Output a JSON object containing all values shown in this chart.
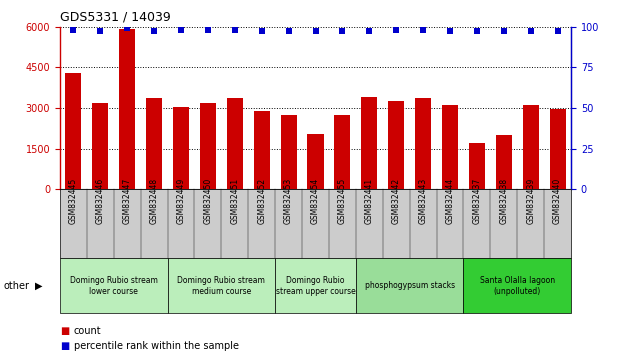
{
  "title": "GDS5331 / 14039",
  "categories": [
    "GSM832445",
    "GSM832446",
    "GSM832447",
    "GSM832448",
    "GSM832449",
    "GSM832450",
    "GSM832451",
    "GSM832452",
    "GSM832453",
    "GSM832454",
    "GSM832455",
    "GSM832441",
    "GSM832442",
    "GSM832443",
    "GSM832444",
    "GSM832437",
    "GSM832438",
    "GSM832439",
    "GSM832440"
  ],
  "counts": [
    4300,
    3200,
    5900,
    3350,
    3050,
    3200,
    3350,
    2900,
    2750,
    2050,
    2750,
    3400,
    3250,
    3350,
    3100,
    1700,
    2000,
    3100,
    2950
  ],
  "percentiles": [
    98,
    97,
    99,
    97,
    98,
    98,
    98,
    97,
    97,
    97,
    97,
    97,
    98,
    98,
    97,
    97,
    97,
    97,
    97
  ],
  "bar_color": "#cc0000",
  "dot_color": "#0000cc",
  "ylim_left": [
    0,
    6000
  ],
  "ylim_right": [
    0,
    100
  ],
  "yticks_left": [
    0,
    1500,
    3000,
    4500,
    6000
  ],
  "yticks_right": [
    0,
    25,
    50,
    75,
    100
  ],
  "groups": [
    {
      "label": "Domingo Rubio stream\nlower course",
      "start": 0,
      "end": 4,
      "color": "#bbeebb"
    },
    {
      "label": "Domingo Rubio stream\nmedium course",
      "start": 4,
      "end": 8,
      "color": "#bbeebb"
    },
    {
      "label": "Domingo Rubio\nstream upper course",
      "start": 8,
      "end": 11,
      "color": "#bbeebb"
    },
    {
      "label": "phosphogypsum stacks",
      "start": 11,
      "end": 15,
      "color": "#99dd99"
    },
    {
      "label": "Santa Olalla lagoon\n(unpolluted)",
      "start": 15,
      "end": 19,
      "color": "#33cc33"
    }
  ],
  "other_label": "other",
  "legend_count_label": "count",
  "legend_pct_label": "percentile rank within the sample",
  "xtick_bg_color": "#cccccc",
  "fig_bg_color": "#ffffff",
  "spine_left_color": "#cc0000",
  "spine_right_color": "#0000cc"
}
